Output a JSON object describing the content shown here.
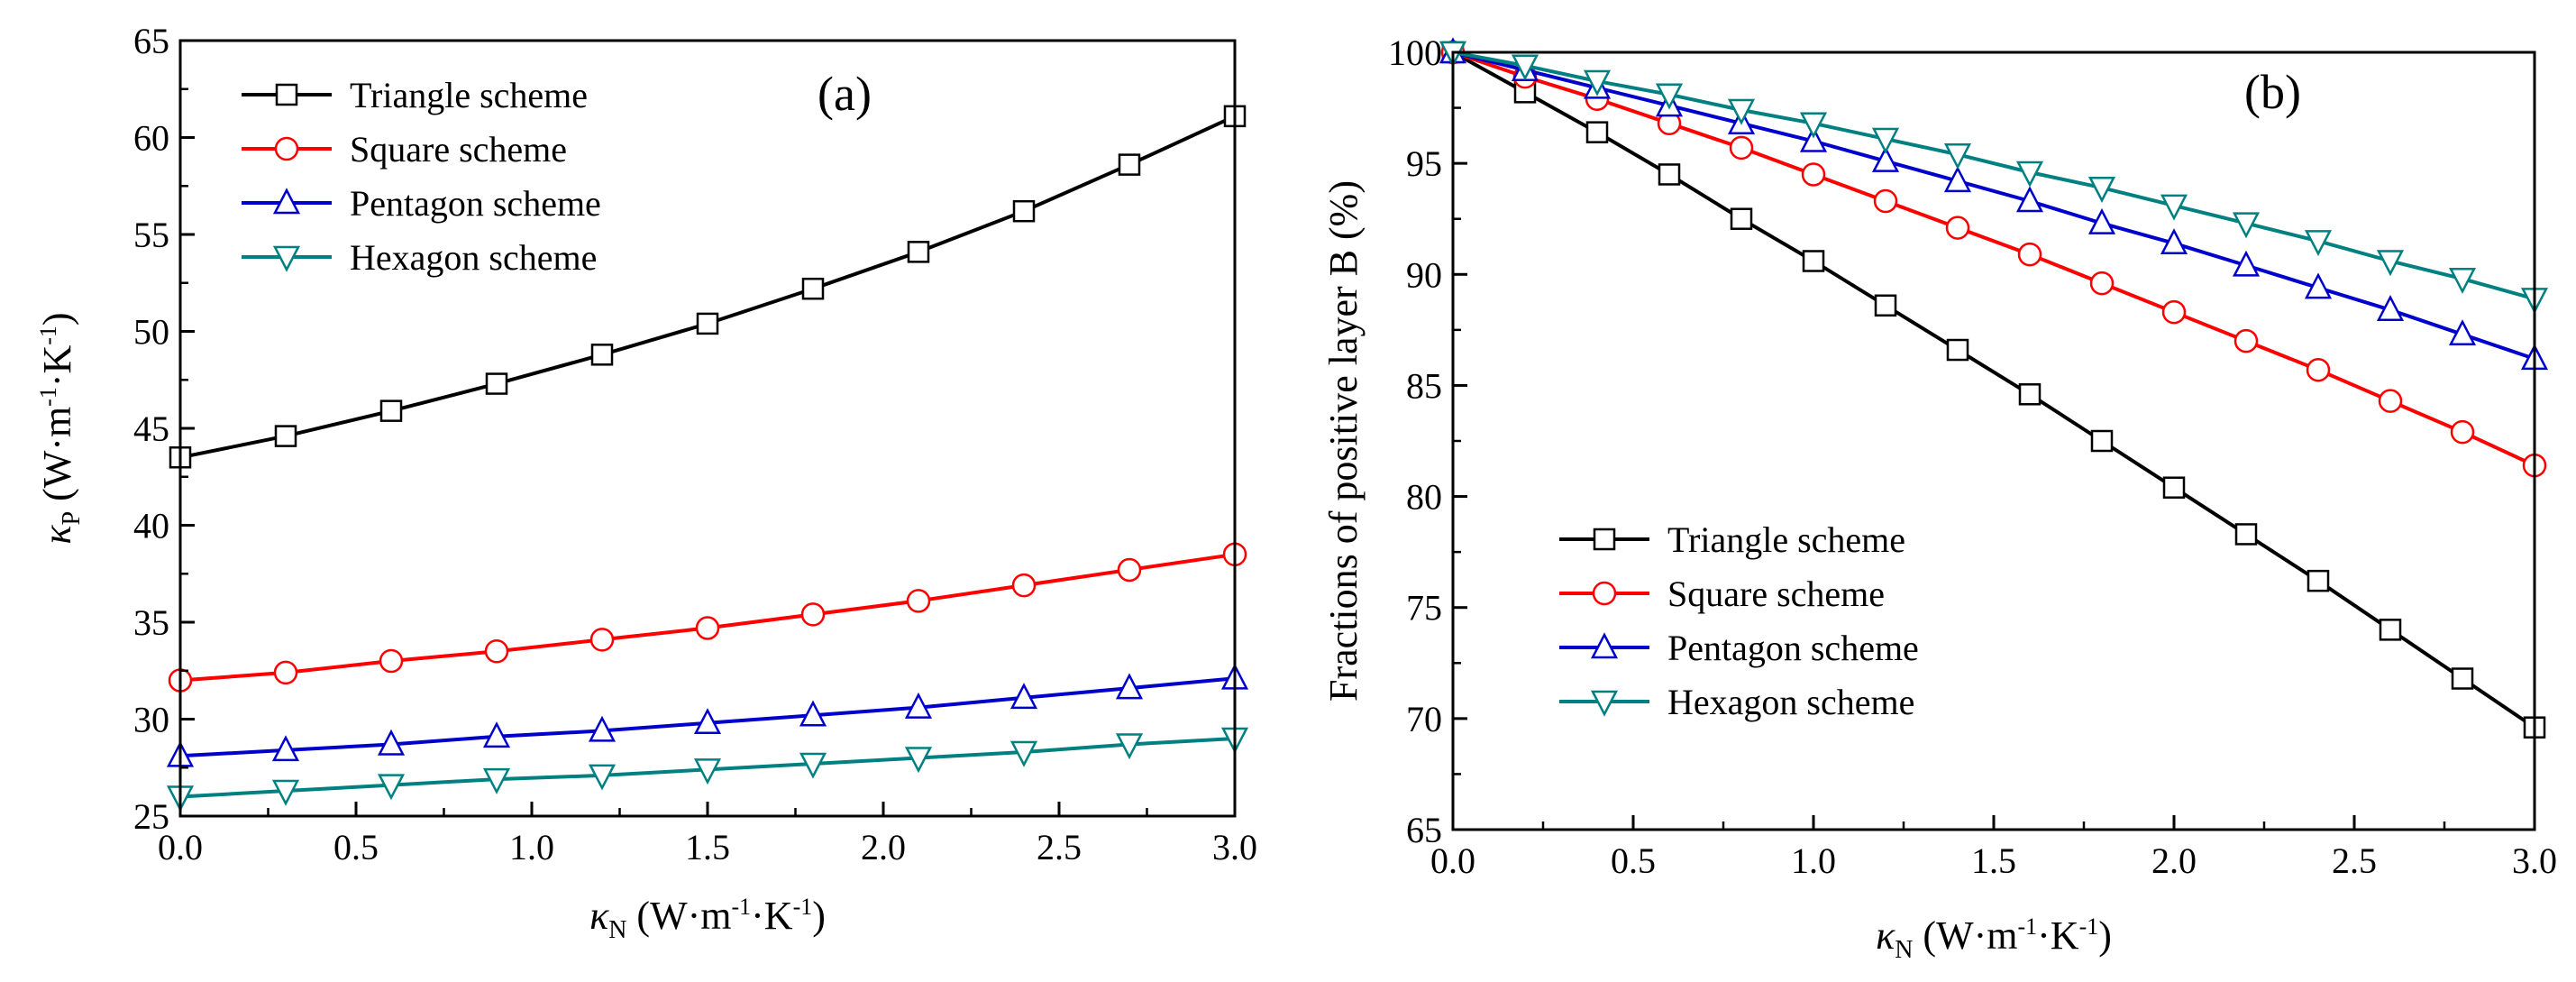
{
  "figure": {
    "colors": {
      "triangle": "#000000",
      "square": "#ff0000",
      "pentagon": "#0000cc",
      "hexagon": "#008080"
    }
  },
  "chart_data": [
    {
      "panel_label": "(a)",
      "type": "line",
      "xlabel": {
        "symbol": "κ",
        "sub": "N",
        "unit_open": " (W·m",
        "sup1": "-1",
        "mid": "·K",
        "sup2": "-1",
        "close": ")"
      },
      "ylabel": {
        "symbol": "κ",
        "sub": "P",
        "unit_open": " (W·m",
        "sup1": "-1",
        "mid": "·K",
        "sup2": "-1",
        "close": ")"
      },
      "xlim": [
        0,
        3
      ],
      "ylim": [
        25,
        65
      ],
      "xticks": [
        0,
        0.5,
        1.0,
        1.5,
        2.0,
        2.5,
        3.0
      ],
      "xtick_labels": [
        "0.0",
        "0.5",
        "1.0",
        "1.5",
        "2.0",
        "2.5",
        "3.0"
      ],
      "yticks": [
        25,
        30,
        35,
        40,
        45,
        50,
        55,
        60,
        65
      ],
      "ytick_labels": [
        "25",
        "30",
        "35",
        "40",
        "45",
        "50",
        "55",
        "60",
        "65"
      ],
      "legend_position": "top-left",
      "series": [
        {
          "name": "Triangle scheme",
          "marker": "square",
          "color": "#000000",
          "x": [
            0,
            0.3,
            0.6,
            0.9,
            1.2,
            1.5,
            1.8,
            2.1,
            2.4,
            2.7,
            3.0
          ],
          "y": [
            43.5,
            44.6,
            45.9,
            47.3,
            48.8,
            50.4,
            52.2,
            54.1,
            56.2,
            58.6,
            61.1
          ]
        },
        {
          "name": "Square scheme",
          "marker": "circle",
          "color": "#ff0000",
          "x": [
            0,
            0.3,
            0.6,
            0.9,
            1.2,
            1.5,
            1.8,
            2.1,
            2.4,
            2.7,
            3.0
          ],
          "y": [
            32.0,
            32.4,
            33.0,
            33.5,
            34.1,
            34.7,
            35.4,
            36.1,
            36.9,
            37.7,
            38.5
          ]
        },
        {
          "name": "Pentagon scheme",
          "marker": "triangle-up",
          "color": "#0000cc",
          "x": [
            0,
            0.3,
            0.6,
            0.9,
            1.2,
            1.5,
            1.8,
            2.1,
            2.4,
            2.7,
            3.0
          ],
          "y": [
            28.1,
            28.4,
            28.7,
            29.1,
            29.4,
            29.8,
            30.2,
            30.6,
            31.1,
            31.6,
            32.1
          ]
        },
        {
          "name": "Hexagon scheme",
          "marker": "triangle-down",
          "color": "#008080",
          "x": [
            0,
            0.3,
            0.6,
            0.9,
            1.2,
            1.5,
            1.8,
            2.1,
            2.4,
            2.7,
            3.0
          ],
          "y": [
            26.0,
            26.3,
            26.6,
            26.9,
            27.1,
            27.4,
            27.7,
            28.0,
            28.3,
            28.7,
            29.0
          ]
        }
      ]
    },
    {
      "panel_label": "(b)",
      "type": "line",
      "xlabel": {
        "symbol": "κ",
        "sub": "N",
        "unit_open": " (W·m",
        "sup1": "-1",
        "mid": "·K",
        "sup2": "-1",
        "close": ")"
      },
      "ylabel_text": "Fractions of positive layer B (%)",
      "xlim": [
        0,
        3
      ],
      "ylim": [
        65,
        100
      ],
      "xticks": [
        0,
        0.5,
        1.0,
        1.5,
        2.0,
        2.5,
        3.0
      ],
      "xtick_labels": [
        "0.0",
        "0.5",
        "1.0",
        "1.5",
        "2.0",
        "2.5",
        "3.0"
      ],
      "yticks": [
        65,
        70,
        75,
        80,
        85,
        90,
        95,
        100
      ],
      "ytick_labels": [
        "65",
        "70",
        "75",
        "80",
        "85",
        "90",
        "95",
        "100"
      ],
      "legend_position": "bottom-left",
      "series": [
        {
          "name": "Triangle scheme",
          "marker": "square",
          "color": "#000000",
          "x": [
            0,
            0.2,
            0.4,
            0.6,
            0.8,
            1.0,
            1.2,
            1.4,
            1.6,
            1.8,
            2.0,
            2.2,
            2.4,
            2.6,
            2.8,
            3.0
          ],
          "y": [
            100,
            98.2,
            96.4,
            94.5,
            92.5,
            90.6,
            88.6,
            86.6,
            84.6,
            82.5,
            80.4,
            78.3,
            76.2,
            74.0,
            71.8,
            69.6
          ]
        },
        {
          "name": "Square scheme",
          "marker": "circle",
          "color": "#ff0000",
          "x": [
            0,
            0.2,
            0.4,
            0.6,
            0.8,
            1.0,
            1.2,
            1.4,
            1.6,
            1.8,
            2.0,
            2.2,
            2.4,
            2.6,
            2.8,
            3.0
          ],
          "y": [
            100,
            98.9,
            97.9,
            96.8,
            95.7,
            94.5,
            93.3,
            92.1,
            90.9,
            89.6,
            88.3,
            87.0,
            85.7,
            84.3,
            82.9,
            81.4
          ]
        },
        {
          "name": "Pentagon scheme",
          "marker": "triangle-up",
          "color": "#0000cc",
          "x": [
            0,
            0.2,
            0.4,
            0.6,
            0.8,
            1.0,
            1.2,
            1.4,
            1.6,
            1.8,
            2.0,
            2.2,
            2.4,
            2.6,
            2.8,
            3.0
          ],
          "y": [
            100,
            99.2,
            98.4,
            97.6,
            96.8,
            96.0,
            95.1,
            94.2,
            93.3,
            92.3,
            91.4,
            90.4,
            89.4,
            88.4,
            87.3,
            86.2
          ]
        },
        {
          "name": "Hexagon scheme",
          "marker": "triangle-down",
          "color": "#008080",
          "x": [
            0,
            0.2,
            0.4,
            0.6,
            0.8,
            1.0,
            1.2,
            1.4,
            1.6,
            1.8,
            2.0,
            2.2,
            2.4,
            2.6,
            2.8,
            3.0
          ],
          "y": [
            100,
            99.4,
            98.7,
            98.1,
            97.4,
            96.8,
            96.1,
            95.4,
            94.6,
            93.9,
            93.1,
            92.3,
            91.5,
            90.6,
            89.8,
            88.9
          ]
        }
      ]
    }
  ]
}
